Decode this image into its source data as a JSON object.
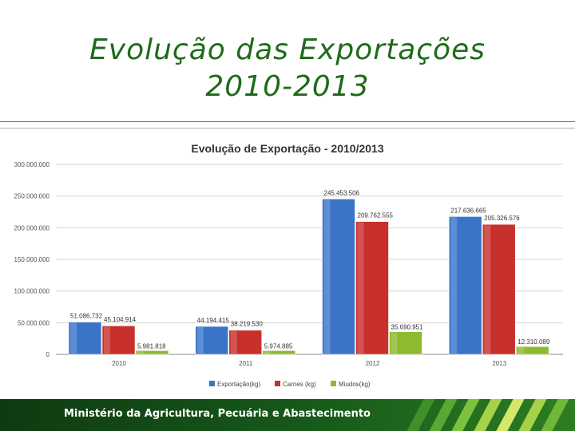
{
  "slide": {
    "title_line1": "Evolução das Exportações",
    "title_line2": "2010-2013",
    "footer_text": "Ministério da Agricultura, Pecuária e Abastecimento"
  },
  "colors": {
    "title": "#1e6b1a",
    "series": [
      "#3a74c8",
      "#c8302c",
      "#8dba2e"
    ],
    "footer": "#175a1a"
  },
  "chart_data": {
    "type": "bar",
    "title": "Evolução de Exportação  - 2010/2013",
    "categories": [
      "2010",
      "2011",
      "2012",
      "2013"
    ],
    "series": [
      {
        "name": "Exportação(kg)",
        "values": [
          51086732,
          44194415,
          245453506,
          217636665
        ],
        "labels": [
          "51.086.732",
          "44.194.415",
          "245.453.506",
          "217.636.665"
        ]
      },
      {
        "name": "Carnes (kg)",
        "values": [
          45104914,
          38219530,
          209762555,
          205326576
        ],
        "labels": [
          "45.104.914",
          "38.219.530",
          "209.762.555",
          "205.326.576"
        ]
      },
      {
        "name": "Miudos(kg)",
        "values": [
          5981818,
          5974885,
          35690951,
          12310089
        ],
        "labels": [
          "5.981.818",
          "5.974.885",
          "35.690.951",
          "12.310.089"
        ]
      }
    ],
    "yticks": [
      "0",
      "50.000.000",
      "100.000.000",
      "150.000.000",
      "200.000.000",
      "250.000.000",
      "300.000.000"
    ],
    "ylim": [
      0,
      300000000
    ],
    "grid": true,
    "legend_position": "bottom"
  }
}
